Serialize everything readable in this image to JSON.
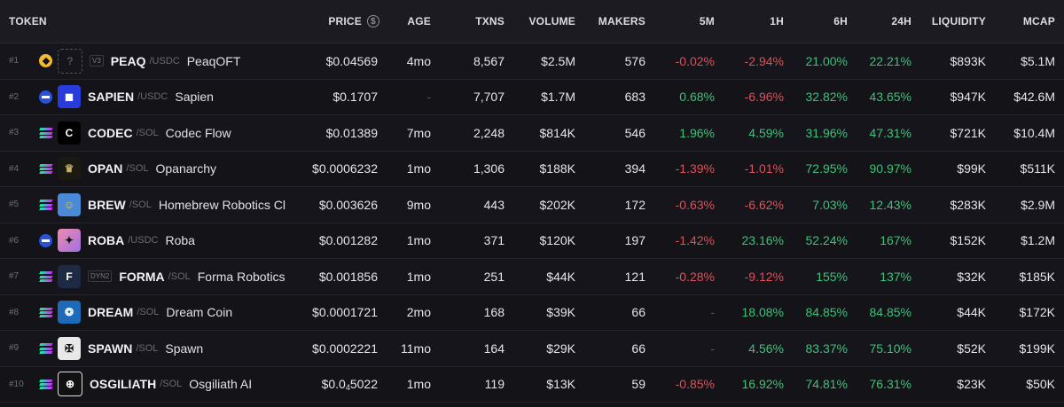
{
  "headers": {
    "token": "TOKEN",
    "price": "PRICE",
    "age": "AGE",
    "txns": "TXNS",
    "volume": "VOLUME",
    "makers": "MAKERS",
    "m5": "5M",
    "h1": "1H",
    "h6": "6H",
    "h24": "24H",
    "liquidity": "LIQUIDITY",
    "mcap": "MCAP",
    "price_icon": "$"
  },
  "colors": {
    "negative": "#e0505a",
    "positive": "#3ec27a",
    "background": "#131318"
  },
  "rows": [
    {
      "rank": "#1",
      "chain": "bnb",
      "logo_icon": "placeholder-logo-icon",
      "badge": "V3",
      "symbol": "PEAQ",
      "pair": "/USDC",
      "name": "PeaqOFT",
      "price": "$0.04569",
      "age": "4mo",
      "txns": "8,567",
      "volume": "$2.5M",
      "makers": "576",
      "m5": "-0.02%",
      "h1": "-2.94%",
      "h6": "21.00%",
      "h24": "22.21%",
      "liquidity": "$893K",
      "mcap": "$5.1M"
    },
    {
      "rank": "#2",
      "chain": "base",
      "logo_icon": "sapien-logo-icon",
      "badge": "",
      "symbol": "SAPIEN",
      "pair": "/USDC",
      "name": "Sapien",
      "price": "$0.1707",
      "age": "-",
      "txns": "7,707",
      "volume": "$1.7M",
      "makers": "683",
      "m5": "0.68%",
      "h1": "-6.96%",
      "h6": "32.82%",
      "h24": "43.65%",
      "liquidity": "$947K",
      "mcap": "$42.6M"
    },
    {
      "rank": "#3",
      "chain": "sol",
      "logo_icon": "codec-logo-icon",
      "badge": "",
      "symbol": "CODEC",
      "pair": "/SOL",
      "name": "Codec Flow",
      "price": "$0.01389",
      "age": "7mo",
      "txns": "2,248",
      "volume": "$814K",
      "makers": "546",
      "m5": "1.96%",
      "h1": "4.59%",
      "h6": "31.96%",
      "h24": "47.31%",
      "liquidity": "$721K",
      "mcap": "$10.4M"
    },
    {
      "rank": "#4",
      "chain": "sol",
      "logo_icon": "opan-logo-icon",
      "badge": "",
      "symbol": "OPAN",
      "pair": "/SOL",
      "name": "Opanarchy",
      "price": "$0.0006232",
      "age": "1mo",
      "txns": "1,306",
      "volume": "$188K",
      "makers": "394",
      "m5": "-1.39%",
      "h1": "-1.01%",
      "h6": "72.95%",
      "h24": "90.97%",
      "liquidity": "$99K",
      "mcap": "$511K"
    },
    {
      "rank": "#5",
      "chain": "sol",
      "logo_icon": "brew-logo-icon",
      "badge": "",
      "symbol": "BREW",
      "pair": "/SOL",
      "name": "Homebrew Robotics Club",
      "price": "$0.003626",
      "age": "9mo",
      "txns": "443",
      "volume": "$202K",
      "makers": "172",
      "m5": "-0.63%",
      "h1": "-6.62%",
      "h6": "7.03%",
      "h24": "12.43%",
      "liquidity": "$283K",
      "mcap": "$2.9M"
    },
    {
      "rank": "#6",
      "chain": "base",
      "logo_icon": "roba-logo-icon",
      "badge": "",
      "symbol": "ROBA",
      "pair": "/USDC",
      "name": "Roba",
      "price": "$0.001282",
      "age": "1mo",
      "txns": "371",
      "volume": "$120K",
      "makers": "197",
      "m5": "-1.42%",
      "h1": "23.16%",
      "h6": "52.24%",
      "h24": "167%",
      "liquidity": "$152K",
      "mcap": "$1.2M"
    },
    {
      "rank": "#7",
      "chain": "sol",
      "logo_icon": "forma-logo-icon",
      "badge": "DYN2",
      "symbol": "FORMA",
      "pair": "/SOL",
      "name": "Forma Robotics",
      "price": "$0.001856",
      "age": "1mo",
      "txns": "251",
      "volume": "$44K",
      "makers": "121",
      "m5": "-0.28%",
      "h1": "-9.12%",
      "h6": "155%",
      "h24": "137%",
      "liquidity": "$32K",
      "mcap": "$185K"
    },
    {
      "rank": "#8",
      "chain": "sol",
      "logo_icon": "dream-logo-icon",
      "badge": "",
      "symbol": "DREAM",
      "pair": "/SOL",
      "name": "Dream Coin",
      "price": "$0.0001721",
      "age": "2mo",
      "txns": "168",
      "volume": "$39K",
      "makers": "66",
      "m5": "-",
      "h1": "18.08%",
      "h6": "84.85%",
      "h24": "84.85%",
      "liquidity": "$44K",
      "mcap": "$172K"
    },
    {
      "rank": "#9",
      "chain": "sol",
      "logo_icon": "spawn-logo-icon",
      "badge": "",
      "symbol": "SPAWN",
      "pair": "/SOL",
      "name": "Spawn",
      "price": "$0.0002221",
      "age": "11mo",
      "txns": "164",
      "volume": "$29K",
      "makers": "66",
      "m5": "-",
      "h1": "4.56%",
      "h6": "83.37%",
      "h24": "75.10%",
      "liquidity": "$52K",
      "mcap": "$199K"
    },
    {
      "rank": "#10",
      "chain": "sol",
      "logo_icon": "osgiliath-logo-icon",
      "badge": "",
      "symbol": "OSGILIATH",
      "pair": "/SOL",
      "name": "Osgiliath AI",
      "price_prefix": "$0.0",
      "price_sub": "4",
      "price_suffix": "5022",
      "age": "1mo",
      "txns": "119",
      "volume": "$13K",
      "makers": "59",
      "m5": "-0.85%",
      "h1": "16.92%",
      "h6": "74.81%",
      "h24": "76.31%",
      "liquidity": "$23K",
      "mcap": "$50K"
    }
  ]
}
